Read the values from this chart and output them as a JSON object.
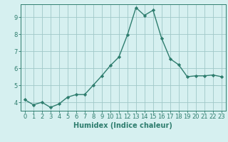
{
  "x": [
    0,
    1,
    2,
    3,
    4,
    5,
    6,
    7,
    8,
    9,
    10,
    11,
    12,
    13,
    14,
    15,
    16,
    17,
    18,
    19,
    20,
    21,
    22,
    23
  ],
  "y": [
    4.15,
    3.85,
    4.0,
    3.7,
    3.9,
    4.3,
    4.45,
    4.45,
    5.0,
    5.55,
    6.15,
    6.65,
    7.95,
    9.55,
    9.1,
    9.4,
    7.75,
    6.55,
    6.2,
    5.5,
    5.55,
    5.55,
    5.6,
    5.5
  ],
  "xlabel": "Humidex (Indice chaleur)",
  "ylim": [
    3.5,
    9.75
  ],
  "xlim": [
    -0.5,
    23.5
  ],
  "line_color": "#2e7d6e",
  "bg_color": "#d6f0f0",
  "grid_color": "#a0c8c8",
  "yticks": [
    4,
    5,
    6,
    7,
    8,
    9
  ],
  "xticks": [
    0,
    1,
    2,
    3,
    4,
    5,
    6,
    7,
    8,
    9,
    10,
    11,
    12,
    13,
    14,
    15,
    16,
    17,
    18,
    19,
    20,
    21,
    22,
    23
  ],
  "tick_fontsize": 6,
  "xlabel_fontsize": 7
}
